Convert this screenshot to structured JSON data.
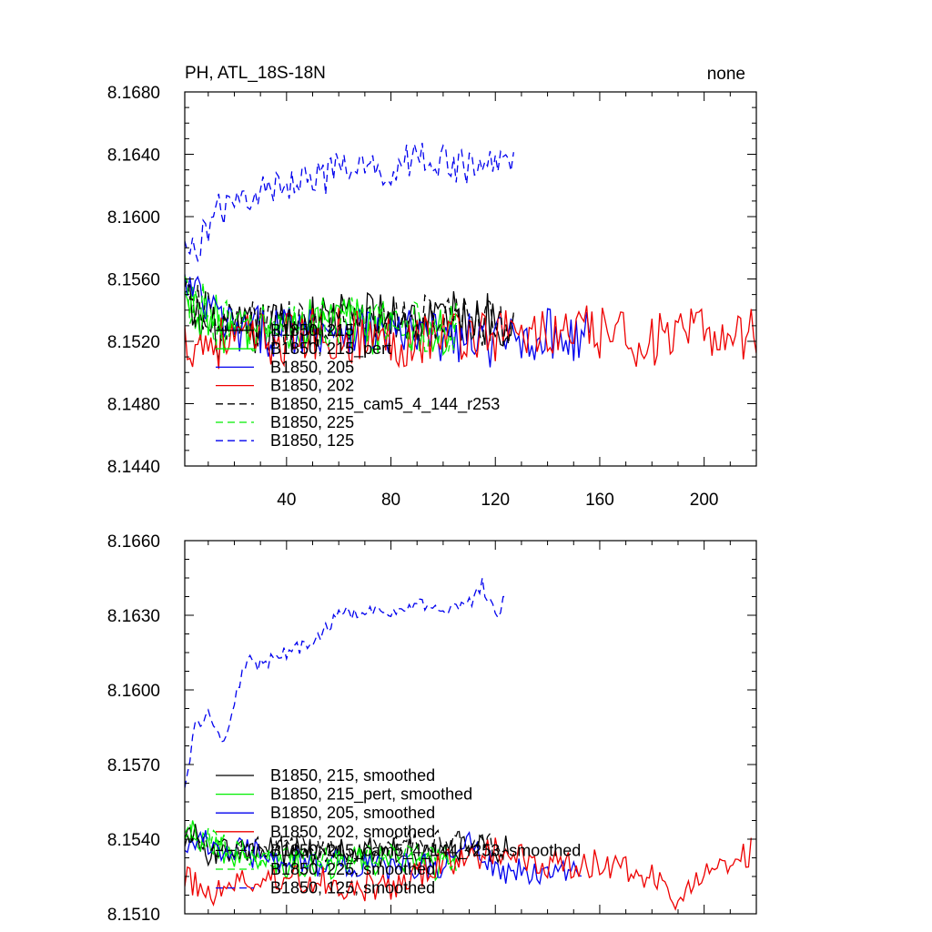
{
  "figure": {
    "title_left": "PH, ATL_18S-18N",
    "title_right": "none"
  },
  "chart_data": [
    {
      "type": "line",
      "title": "PH, ATL_18S-18N",
      "xlim": [
        1,
        220
      ],
      "ylim": [
        8.144,
        8.168
      ],
      "xticks": [
        40,
        80,
        120,
        160,
        200
      ],
      "xtick_labels": [
        "40",
        "80",
        "120",
        "160",
        "200"
      ],
      "yticks": [
        8.144,
        8.148,
        8.152,
        8.156,
        8.16,
        8.164,
        8.168
      ],
      "ytick_labels": [
        "8.1440",
        "8.1480",
        "8.1520",
        "8.1560",
        "8.1600",
        "8.1640",
        "8.1680"
      ],
      "legend": [
        "B1850, 215",
        "B1850, 215_pert",
        "B1850, 205",
        "B1850, 202",
        "B1850, 215_cam5_4_144_r253",
        "B1850, 225",
        "B1850, 125"
      ],
      "series": [
        {
          "name": "B1850, 215",
          "color": "#000000",
          "dash": "solid",
          "n": 127,
          "anchors_x": [
            1,
            10,
            20,
            40,
            60,
            80,
            100,
            127
          ],
          "anchors_y": [
            8.1545,
            8.1525,
            8.1525,
            8.153,
            8.1535,
            8.1535,
            8.1535,
            8.1535
          ],
          "amp": 0.0018
        },
        {
          "name": "B1850, 215_pert",
          "color": "#00ee00",
          "dash": "solid",
          "n": 105,
          "anchors_x": [
            1,
            20,
            40,
            60,
            80,
            105
          ],
          "anchors_y": [
            8.1545,
            8.1525,
            8.153,
            8.1532,
            8.1528,
            8.1525
          ],
          "amp": 0.0018
        },
        {
          "name": "B1850, 205",
          "color": "#0000ee",
          "dash": "solid",
          "n": 156,
          "anchors_x": [
            1,
            20,
            40,
            60,
            80,
            100,
            120,
            140,
            156
          ],
          "anchors_y": [
            8.1555,
            8.1525,
            8.1528,
            8.153,
            8.1525,
            8.1522,
            8.152,
            8.1525,
            8.1522
          ],
          "amp": 0.0017
        },
        {
          "name": "B1850, 202",
          "color": "#ee0000",
          "dash": "solid",
          "n": 220,
          "anchors_x": [
            1,
            20,
            40,
            60,
            80,
            100,
            120,
            140,
            160,
            180,
            200,
            220
          ],
          "anchors_y": [
            8.152,
            8.152,
            8.1522,
            8.1525,
            8.152,
            8.1525,
            8.1525,
            8.1525,
            8.1525,
            8.152,
            8.1525,
            8.1525
          ],
          "amp": 0.0018
        },
        {
          "name": "B1850, 215_cam5_4_144_r253",
          "color": "#000000",
          "dash": "dashed",
          "n": 127,
          "anchors_x": [
            1,
            20,
            40,
            60,
            80,
            100,
            127
          ],
          "anchors_y": [
            8.1545,
            8.153,
            8.153,
            8.1532,
            8.1535,
            8.1535,
            8.153
          ],
          "amp": 0.0016
        },
        {
          "name": "B1850, 225",
          "color": "#00ee00",
          "dash": "dashed",
          "n": 105,
          "anchors_x": [
            1,
            20,
            40,
            60,
            80,
            105
          ],
          "anchors_y": [
            8.155,
            8.1525,
            8.153,
            8.1532,
            8.153,
            8.1528
          ],
          "amp": 0.0017
        },
        {
          "name": "B1850, 125",
          "color": "#0000ee",
          "dash": "dashed",
          "n": 127,
          "anchors_x": [
            1,
            5,
            10,
            15,
            20,
            25,
            30,
            40,
            48,
            55,
            60,
            70,
            80,
            90,
            100,
            110,
            120,
            127
          ],
          "anchors_y": [
            8.1575,
            8.158,
            8.1595,
            8.1605,
            8.1605,
            8.1615,
            8.1615,
            8.162,
            8.163,
            8.1625,
            8.163,
            8.163,
            8.163,
            8.164,
            8.1635,
            8.163,
            8.1635,
            8.1635
          ],
          "amp": 0.0012
        }
      ]
    },
    {
      "type": "line",
      "xlim": [
        1,
        220
      ],
      "ylim": [
        8.151,
        8.166
      ],
      "xticks": [
        40,
        80,
        120,
        160,
        200
      ],
      "yticks": [
        8.151,
        8.154,
        8.157,
        8.16,
        8.163,
        8.166
      ],
      "ytick_labels": [
        "8.1510",
        "8.1540",
        "8.1570",
        "8.1600",
        "8.1630",
        "8.1660"
      ],
      "legend": [
        "B1850, 215, smoothed",
        "B1850, 215_pert, smoothed",
        "B1850, 205, smoothed",
        "B1850, 202, smoothed",
        "B1850, 215_cam5_4_144_r253, smoothed",
        "B1850, 225, smoothed",
        "B1850, 125, smoothed"
      ],
      "series": [
        {
          "name": "B1850, 215, smoothed",
          "color": "#000000",
          "dash": "solid",
          "n": 125,
          "anchors_x": [
            1,
            10,
            20,
            40,
            60,
            80,
            100,
            125
          ],
          "anchors_y": [
            8.1545,
            8.1535,
            8.1535,
            8.1535,
            8.1535,
            8.1535,
            8.1535,
            8.1537
          ],
          "amp": 0.0006
        },
        {
          "name": "B1850, 215_pert, smoothed",
          "color": "#00ee00",
          "dash": "solid",
          "n": 105,
          "anchors_x": [
            1,
            20,
            40,
            60,
            80,
            105
          ],
          "anchors_y": [
            8.1545,
            8.1532,
            8.153,
            8.153,
            8.1532,
            8.1528
          ],
          "amp": 0.0006
        },
        {
          "name": "B1850, 205, smoothed",
          "color": "#0000ee",
          "dash": "solid",
          "n": 153,
          "anchors_x": [
            1,
            20,
            40,
            60,
            80,
            100,
            110,
            120,
            140,
            153
          ],
          "anchors_y": [
            8.154,
            8.1535,
            8.1532,
            8.153,
            8.1528,
            8.153,
            8.1538,
            8.1528,
            8.1525,
            8.1528
          ],
          "amp": 0.0006
        },
        {
          "name": "B1850, 202, smoothed",
          "color": "#ee0000",
          "dash": "solid",
          "n": 218,
          "anchors_x": [
            1,
            10,
            20,
            40,
            60,
            80,
            100,
            120,
            140,
            160,
            180,
            190,
            200,
            210,
            218
          ],
          "anchors_y": [
            8.1525,
            8.1518,
            8.1522,
            8.1525,
            8.1522,
            8.152,
            8.153,
            8.1535,
            8.153,
            8.153,
            8.1525,
            8.1515,
            8.1525,
            8.153,
            8.1535
          ],
          "amp": 0.0006
        },
        {
          "name": "B1850, 215_cam5_4_144_r253, smoothed",
          "color": "#000000",
          "dash": "dashed",
          "n": 125,
          "anchors_x": [
            1,
            20,
            40,
            60,
            80,
            100,
            125
          ],
          "anchors_y": [
            8.154,
            8.1535,
            8.1538,
            8.1535,
            8.1538,
            8.154,
            8.1538
          ],
          "amp": 0.0005
        },
        {
          "name": "B1850, 225, smoothed",
          "color": "#00ee00",
          "dash": "dashed",
          "n": 105,
          "anchors_x": [
            1,
            20,
            40,
            60,
            80,
            105
          ],
          "anchors_y": [
            8.1545,
            8.1535,
            8.1533,
            8.1532,
            8.1535,
            8.1532
          ],
          "amp": 0.0005
        },
        {
          "name": "B1850, 125, smoothed",
          "color": "#0000ee",
          "dash": "dashed",
          "n": 124,
          "anchors_x": [
            1,
            5,
            10,
            15,
            20,
            25,
            30,
            40,
            50,
            60,
            70,
            80,
            90,
            100,
            110,
            115,
            120,
            124
          ],
          "anchors_y": [
            8.1562,
            8.1585,
            8.1592,
            8.1578,
            8.1595,
            8.1612,
            8.161,
            8.1615,
            8.162,
            8.163,
            8.1632,
            8.1632,
            8.1635,
            8.163,
            8.1635,
            8.1642,
            8.163,
            8.1638
          ],
          "amp": 0.0003
        }
      ]
    }
  ]
}
